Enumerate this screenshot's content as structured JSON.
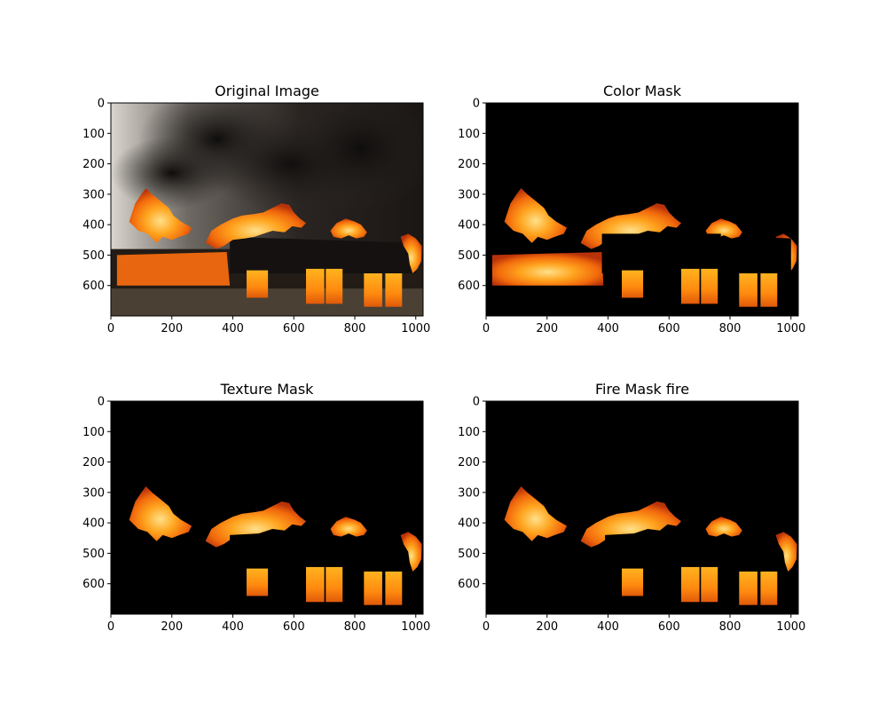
{
  "figure": {
    "background": "#ffffff"
  },
  "chart_data": [
    {
      "type": "image",
      "title": "Original Image",
      "content": "original",
      "image_width": 1024,
      "image_height": 700,
      "xticks": [
        0,
        200,
        400,
        600,
        800,
        1000
      ],
      "yticks": [
        0,
        100,
        200,
        300,
        400,
        500,
        600
      ]
    },
    {
      "type": "image",
      "title": "Color Mask",
      "content": "color_mask",
      "image_width": 1024,
      "image_height": 700,
      "xticks": [
        0,
        200,
        400,
        600,
        800,
        1000
      ],
      "yticks": [
        0,
        100,
        200,
        300,
        400,
        500,
        600
      ]
    },
    {
      "type": "image",
      "title": "Texture Mask",
      "content": "texture_mask",
      "image_width": 1024,
      "image_height": 700,
      "xticks": [
        0,
        200,
        400,
        600,
        800,
        1000
      ],
      "yticks": [
        0,
        100,
        200,
        300,
        400,
        500,
        600
      ]
    },
    {
      "type": "image",
      "title": "Fire Mask fire",
      "content": "fire_mask",
      "image_width": 1024,
      "image_height": 700,
      "xticks": [
        0,
        200,
        400,
        600,
        800,
        1000
      ],
      "yticks": [
        0,
        100,
        200,
        300,
        400,
        500,
        600
      ]
    }
  ]
}
